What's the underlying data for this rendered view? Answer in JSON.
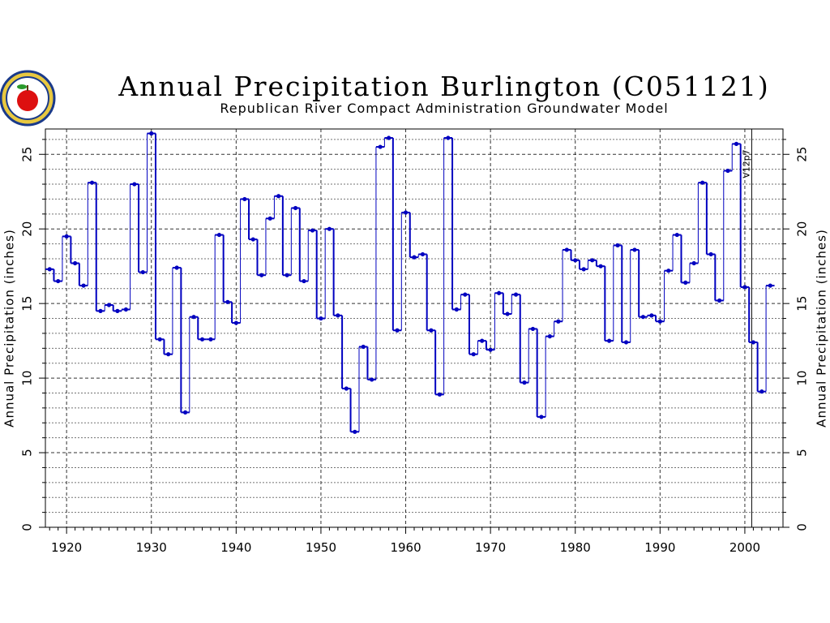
{
  "chart_data": {
    "type": "line",
    "step": true,
    "title": "Annual Precipitation Burlington (C051121)",
    "subtitle": "Republican River Compact Administration Groundwater Model",
    "ylabel_left": "Annual Precipitation (inches)",
    "ylabel_right": "Annual Precipitation (inches)",
    "xlim": [
      1917.5,
      2004.5
    ],
    "ylim": [
      0,
      26.7
    ],
    "x_ticks": [
      1920,
      1930,
      1940,
      1950,
      1960,
      1970,
      1980,
      1990,
      2000
    ],
    "x_tick_labels": [
      "1920",
      "1930",
      "1940",
      "1950",
      "1960",
      "1970",
      "1980",
      "1990",
      "2000"
    ],
    "y_ticks": [
      0,
      5,
      10,
      15,
      20,
      25
    ],
    "y_tick_labels": [
      "0",
      "5",
      "10",
      "15",
      "20",
      "25"
    ],
    "grid": true,
    "annotation": {
      "text": "V12p7",
      "x": 2001
    },
    "series_color": "#0000c0",
    "x": [
      1918,
      1919,
      1920,
      1921,
      1922,
      1923,
      1924,
      1925,
      1926,
      1927,
      1928,
      1929,
      1930,
      1931,
      1932,
      1933,
      1934,
      1935,
      1936,
      1937,
      1938,
      1939,
      1940,
      1941,
      1942,
      1943,
      1944,
      1945,
      1946,
      1947,
      1948,
      1949,
      1950,
      1951,
      1952,
      1953,
      1954,
      1955,
      1956,
      1957,
      1958,
      1959,
      1960,
      1961,
      1962,
      1963,
      1964,
      1965,
      1966,
      1967,
      1968,
      1969,
      1970,
      1971,
      1972,
      1973,
      1974,
      1975,
      1976,
      1977,
      1978,
      1979,
      1980,
      1981,
      1982,
      1983,
      1984,
      1985,
      1986,
      1987,
      1988,
      1989,
      1990,
      1991,
      1992,
      1993,
      1994,
      1995,
      1996,
      1997,
      1998,
      1999,
      2000,
      2001,
      2002,
      2003
    ],
    "values": [
      17.3,
      16.5,
      19.5,
      17.7,
      16.2,
      23.1,
      14.5,
      14.9,
      14.5,
      14.6,
      23.0,
      17.1,
      26.4,
      12.6,
      11.6,
      17.4,
      7.7,
      14.1,
      12.6,
      12.6,
      19.6,
      15.1,
      13.7,
      22.0,
      19.3,
      16.9,
      20.7,
      22.2,
      16.9,
      21.4,
      16.5,
      19.9,
      14.0,
      20.0,
      14.2,
      9.3,
      6.4,
      12.1,
      9.9,
      25.5,
      26.1,
      13.2,
      21.1,
      18.1,
      18.3,
      13.2,
      8.9,
      26.1,
      14.6,
      15.6,
      11.6,
      12.5,
      11.9,
      15.7,
      14.3,
      15.6,
      9.7,
      13.3,
      7.4,
      12.8,
      13.8,
      18.6,
      17.9,
      17.3,
      17.9,
      17.5,
      12.5,
      18.9,
      12.4,
      18.6,
      14.1,
      14.2,
      13.8,
      17.2,
      19.6,
      16.4,
      17.7,
      23.1,
      18.3,
      15.2,
      23.9,
      25.7,
      16.1,
      12.4,
      9.1,
      16.2
    ]
  }
}
